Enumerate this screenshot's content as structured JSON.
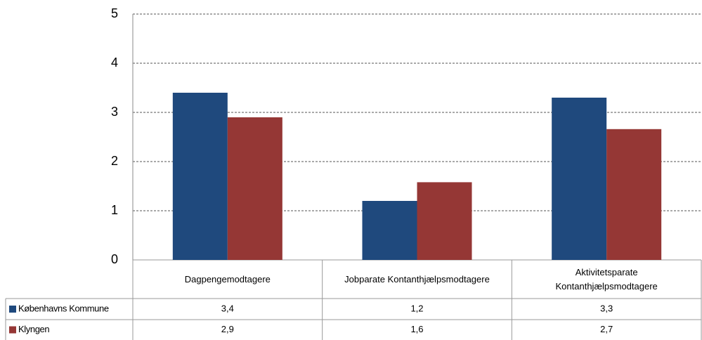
{
  "chart_data": {
    "type": "bar",
    "categories": [
      "Dagpengemodtagere",
      "Jobparate Kontanthjælpsmodtagere",
      "Aktivitetsparate Kontanthjælpsmodtagere"
    ],
    "series": [
      {
        "name": "Københavns Kommune",
        "color": "#1f497d",
        "values": [
          3.4,
          1.2,
          3.3
        ],
        "value_labels": [
          "3,4",
          "1,2",
          "3,3"
        ]
      },
      {
        "name": "Klyngen",
        "color": "#953735",
        "values": [
          2.9,
          1.58,
          2.66
        ],
        "value_labels": [
          "2,9",
          "1,6",
          "2,7"
        ]
      }
    ],
    "ylim": [
      0,
      5
    ],
    "yticks": [
      0,
      1,
      2,
      3,
      4,
      5
    ],
    "grid": true
  }
}
